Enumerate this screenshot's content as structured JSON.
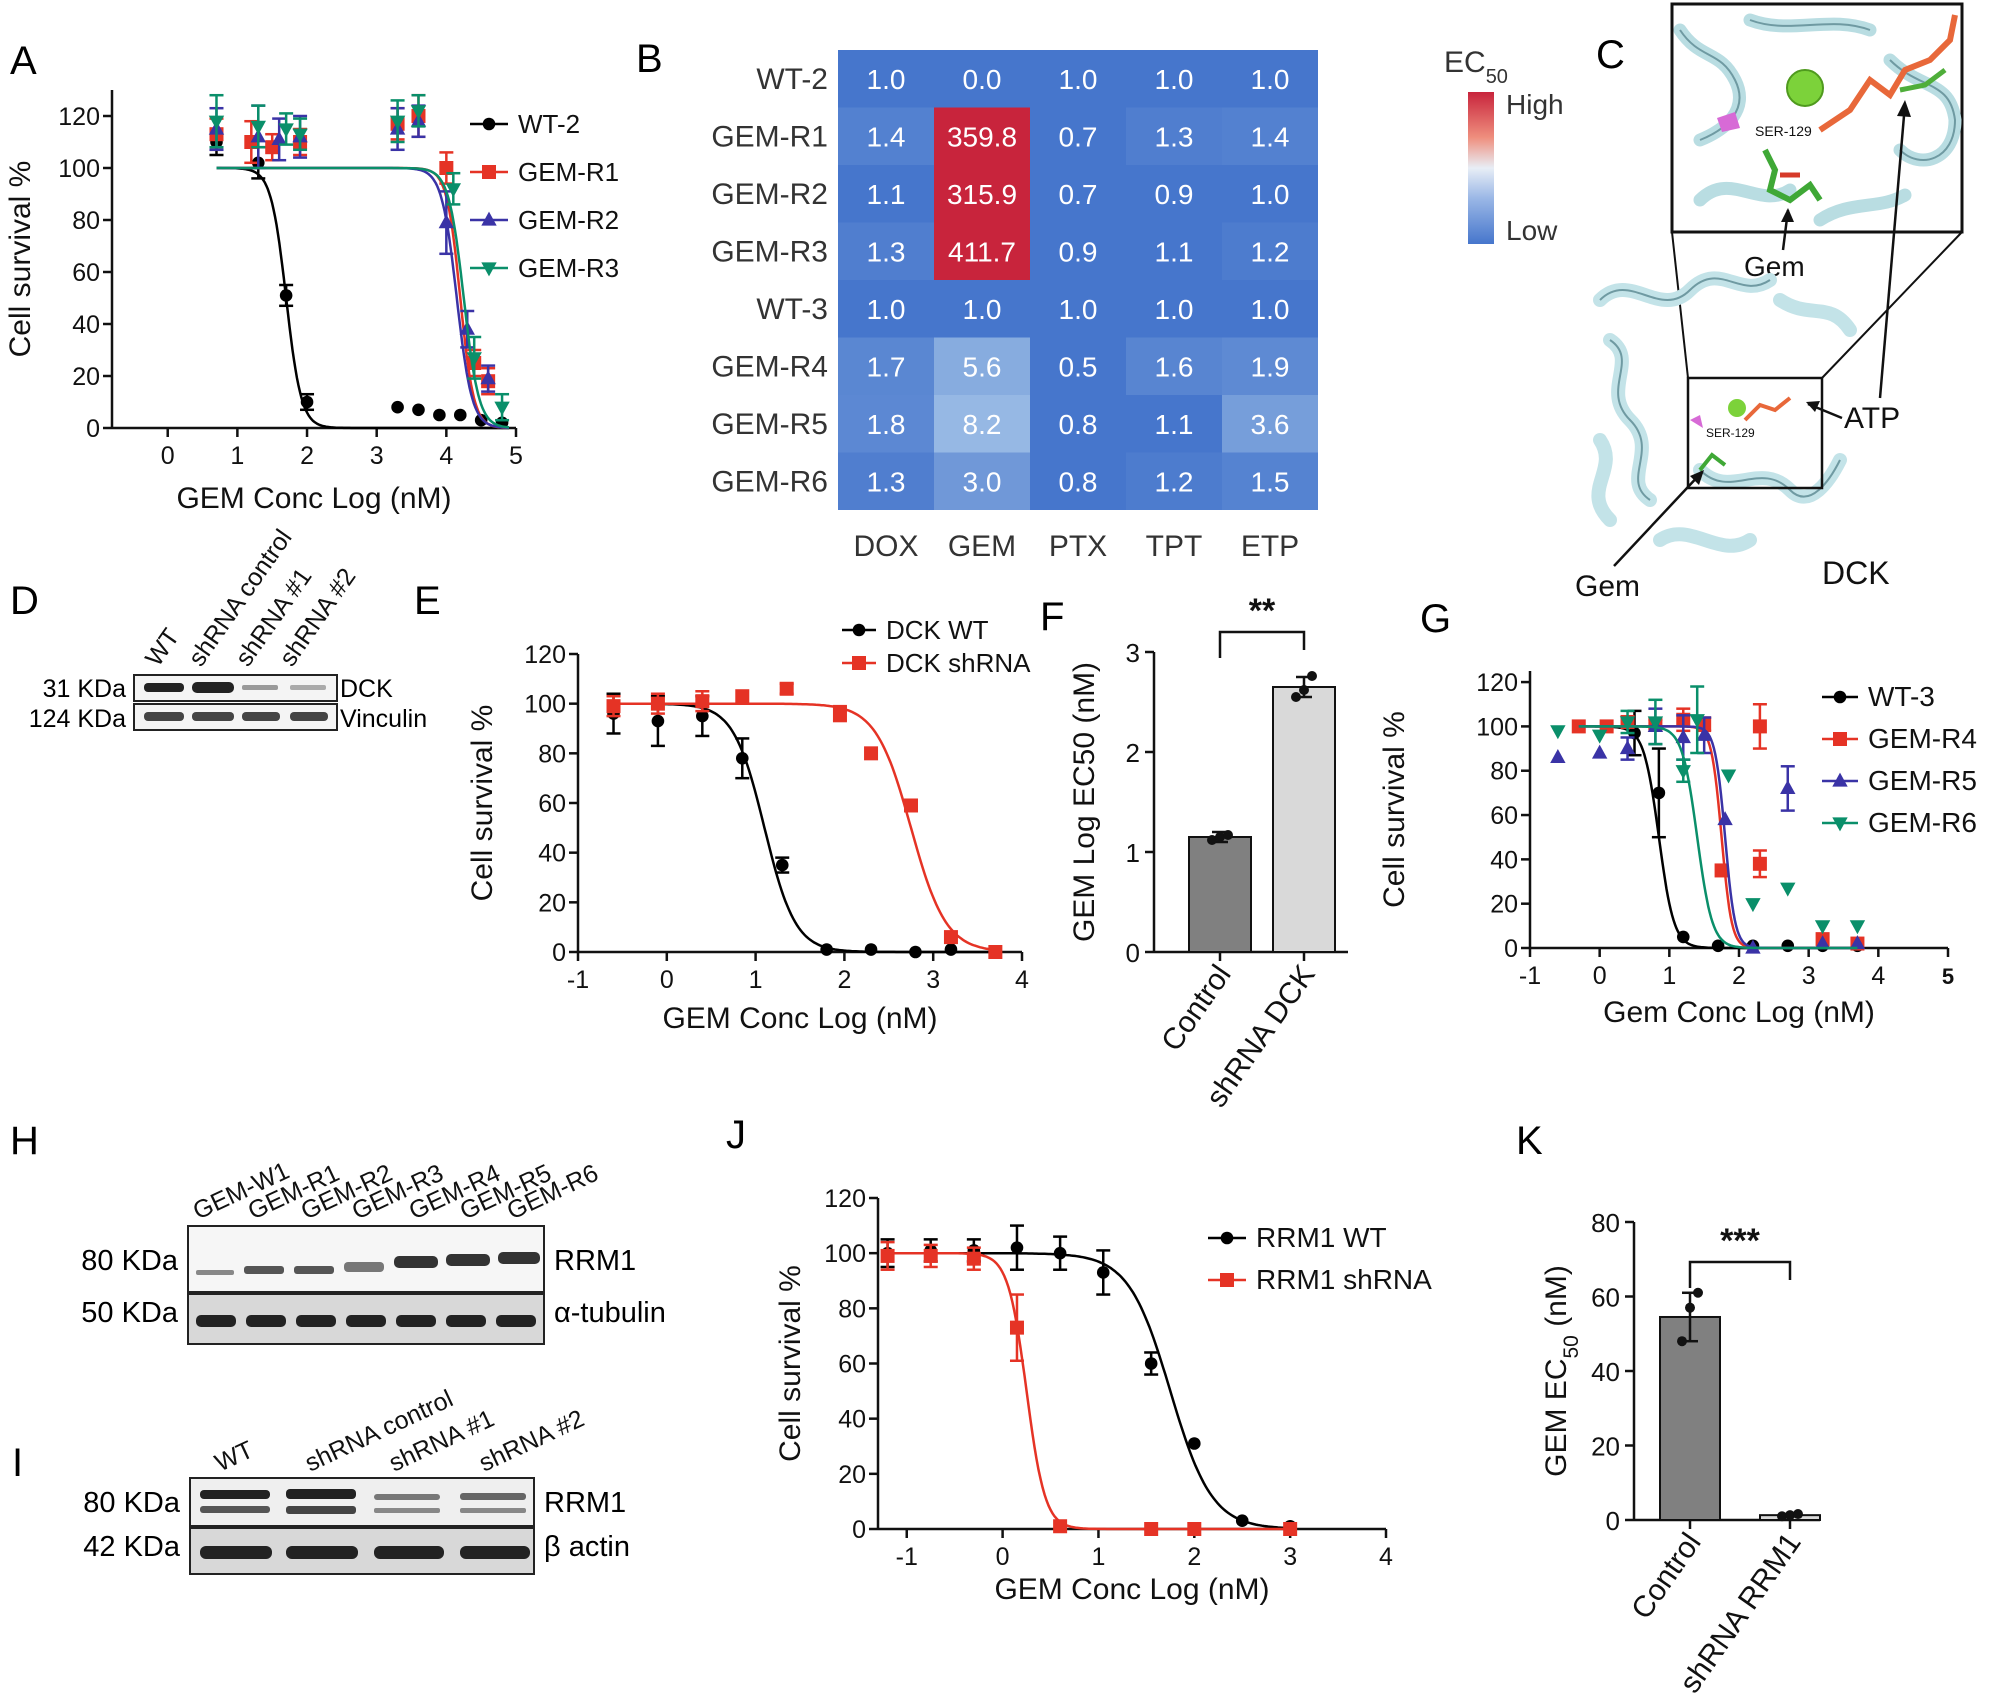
{
  "colors": {
    "black": "#000000",
    "red": "#e53325",
    "blue": "#3a33a6",
    "green": "#0a8f6a",
    "heat_low": "#4676cc",
    "heat_high": "#c8243c",
    "gray_bar": "#808080",
    "light_bar": "#d9d9d9"
  },
  "panel_letters": {
    "A": "A",
    "B": "B",
    "C": "C",
    "D": "D",
    "E": "E",
    "F": "F",
    "G": "G",
    "H": "H",
    "I": "I",
    "J": "J",
    "K": "K"
  },
  "chart_data": [
    {
      "id": "A",
      "type": "line",
      "title": "",
      "xlabel": "GEM Conc Log (nM)",
      "ylabel": "Cell survival %",
      "xlim": [
        -0.8,
        5
      ],
      "ylim": [
        0,
        130
      ],
      "x_ticks": [
        "0",
        "1",
        "2",
        "3",
        "4",
        "5"
      ],
      "y_ticks": [
        "0",
        "20",
        "40",
        "60",
        "80",
        "100",
        "120"
      ],
      "series": [
        {
          "name": "WT-2",
          "color": "#000000",
          "marker": "circle",
          "logec50": 1.7,
          "hill": 4,
          "points": [
            [
              0.7,
              110
            ],
            [
              1.3,
              102
            ],
            [
              1.7,
              51
            ],
            [
              2.0,
              10
            ],
            [
              3.3,
              8
            ],
            [
              3.6,
              7
            ],
            [
              3.9,
              5
            ],
            [
              4.2,
              5
            ],
            [
              4.5,
              3
            ],
            [
              4.8,
              2
            ]
          ],
          "err": [
            5,
            6,
            4,
            3,
            0,
            0,
            0,
            0,
            0,
            0
          ]
        },
        {
          "name": "GEM-R1",
          "color": "#e53325",
          "marker": "square",
          "logec50": 4.2,
          "hill": 4.5,
          "points": [
            [
              0.7,
              113
            ],
            [
              1.2,
              110
            ],
            [
              1.5,
              108
            ],
            [
              1.9,
              110
            ],
            [
              3.3,
              117
            ],
            [
              3.6,
              120
            ],
            [
              4.0,
              100
            ],
            [
              4.4,
              25
            ],
            [
              4.6,
              18
            ]
          ],
          "err": [
            6,
            8,
            5,
            5,
            6,
            8,
            6,
            5,
            5
          ]
        },
        {
          "name": "GEM-R2",
          "color": "#3a33a6",
          "marker": "triangle",
          "logec50": 4.15,
          "hill": 4,
          "points": [
            [
              0.7,
              115
            ],
            [
              1.3,
              112
            ],
            [
              1.6,
              111
            ],
            [
              1.9,
              112
            ],
            [
              3.3,
              115
            ],
            [
              3.6,
              118
            ],
            [
              4.0,
              79
            ],
            [
              4.3,
              38
            ],
            [
              4.6,
              19
            ]
          ],
          "err": [
            8,
            12,
            8,
            8,
            8,
            6,
            12,
            7,
            5
          ]
        },
        {
          "name": "GEM-R3",
          "color": "#0a8f6a",
          "marker": "triangle-down",
          "logec50": 4.25,
          "hill": 4,
          "points": [
            [
              0.7,
              118
            ],
            [
              1.3,
              116
            ],
            [
              1.7,
              115
            ],
            [
              1.9,
              113
            ],
            [
              3.3,
              118
            ],
            [
              3.6,
              122
            ],
            [
              4.1,
              92
            ],
            [
              4.4,
              27
            ],
            [
              4.8,
              8
            ]
          ],
          "err": [
            10,
            8,
            6,
            6,
            8,
            6,
            6,
            8,
            5
          ]
        }
      ]
    },
    {
      "id": "B",
      "type": "heatmap",
      "xlabel": "",
      "ylabel": "",
      "rows": [
        "WT-2",
        "GEM-R1",
        "GEM-R2",
        "GEM-R3",
        "WT-3",
        "GEM-R4",
        "GEM-R5",
        "GEM-R6"
      ],
      "cols": [
        "DOX",
        "GEM",
        "PTX",
        "TPT",
        "ETP"
      ],
      "values": [
        [
          "1.0",
          "0.0",
          "1.0",
          "1.0",
          "1.0"
        ],
        [
          "1.4",
          "359.8",
          "0.7",
          "1.3",
          "1.4"
        ],
        [
          "1.1",
          "315.9",
          "0.7",
          "0.9",
          "1.0"
        ],
        [
          "1.3",
          "411.7",
          "0.9",
          "1.1",
          "1.2"
        ],
        [
          "1.0",
          "1.0",
          "1.0",
          "1.0",
          "1.0"
        ],
        [
          "1.7",
          "5.6",
          "0.5",
          "1.6",
          "1.9"
        ],
        [
          "1.8",
          "8.2",
          "0.8",
          "1.1",
          "3.6"
        ],
        [
          "1.3",
          "3.0",
          "0.8",
          "1.2",
          "1.5"
        ]
      ],
      "colorbar": {
        "title": "EC",
        "title_sub": "50",
        "high": "High",
        "low": "Low"
      }
    },
    {
      "id": "E",
      "type": "line",
      "xlabel": "GEM Conc Log (nM)",
      "ylabel": "Cell survival %",
      "xlim": [
        -1,
        4
      ],
      "ylim": [
        0,
        120
      ],
      "x_ticks": [
        "-1",
        "0",
        "1",
        "2",
        "3",
        "4"
      ],
      "y_ticks": [
        "0",
        "20",
        "40",
        "60",
        "80",
        "100",
        "120"
      ],
      "series": [
        {
          "name": "DCK WT",
          "color": "#000000",
          "marker": "circle",
          "logec50": 1.1,
          "hill": 2.5,
          "points": [
            [
              -0.6,
              96
            ],
            [
              -0.1,
              93
            ],
            [
              0.4,
              95
            ],
            [
              0.85,
              78
            ],
            [
              1.3,
              35
            ],
            [
              1.8,
              1
            ],
            [
              2.3,
              1
            ],
            [
              2.8,
              0
            ],
            [
              3.2,
              1
            ]
          ],
          "err": [
            8,
            10,
            8,
            8,
            3,
            0,
            0,
            0,
            0
          ]
        },
        {
          "name": "DCK shRNA",
          "color": "#e53325",
          "marker": "square",
          "logec50": 2.75,
          "hill": 2.2,
          "points": [
            [
              -0.6,
              99
            ],
            [
              -0.1,
              100
            ],
            [
              0.4,
              101
            ],
            [
              0.85,
              103
            ],
            [
              1.35,
              106
            ],
            [
              1.95,
              96
            ],
            [
              2.3,
              80
            ],
            [
              2.75,
              59
            ],
            [
              3.2,
              6
            ],
            [
              3.7,
              0
            ]
          ],
          "err": [
            4,
            4,
            4,
            0,
            2,
            3,
            0,
            0,
            0,
            0
          ]
        }
      ]
    },
    {
      "id": "F",
      "type": "bar",
      "ylabel": "GEM Log EC50 (nM)",
      "ylim": [
        0,
        3
      ],
      "categories": [
        "Control",
        "shRNA DCK"
      ],
      "values": [
        1.15,
        2.65
      ],
      "errors": [
        0.05,
        0.1
      ],
      "points": [
        [
          1.12,
          1.15,
          1.17
        ],
        [
          2.55,
          2.62,
          2.76
        ]
      ],
      "y_ticks": [
        "0",
        "1",
        "2",
        "3"
      ],
      "significance": "**"
    },
    {
      "id": "G",
      "type": "line",
      "xlabel": "Gem Conc Log (nM)",
      "ylabel": "Cell survival %",
      "xlim": [
        -1,
        5
      ],
      "ylim": [
        0,
        125
      ],
      "x_ticks": [
        "-1",
        "0",
        "1",
        "2",
        "3",
        "4",
        "5"
      ],
      "y_ticks": [
        "0",
        "20",
        "40",
        "60",
        "80",
        "100",
        "120"
      ],
      "series": [
        {
          "name": "WT-3",
          "color": "#000000",
          "marker": "circle",
          "logec50": 0.85,
          "hill": 4,
          "points": [
            [
              -0.3,
              100
            ],
            [
              0.1,
              100
            ],
            [
              0.5,
              97
            ],
            [
              0.85,
              70
            ],
            [
              1.2,
              5
            ],
            [
              1.7,
              1
            ],
            [
              2.2,
              1
            ],
            [
              2.7,
              1
            ],
            [
              3.2,
              1
            ],
            [
              3.7,
              1
            ]
          ],
          "err": [
            0,
            0,
            10,
            20,
            0,
            0,
            0,
            0,
            0,
            0
          ]
        },
        {
          "name": "GEM-R4",
          "color": "#e53325",
          "marker": "square",
          "logec50": 1.75,
          "hill": 6,
          "points": [
            [
              -0.3,
              100
            ],
            [
              0.1,
              100
            ],
            [
              0.4,
              102
            ],
            [
              0.8,
              101
            ],
            [
              1.2,
              103
            ],
            [
              1.5,
              101
            ],
            [
              1.75,
              35
            ],
            [
              2.3,
              100
            ],
            [
              2.3,
              38
            ],
            [
              3.2,
              4
            ],
            [
              3.7,
              2
            ]
          ],
          "err": [
            0,
            0,
            2,
            2,
            5,
            3,
            0,
            10,
            6,
            0,
            0
          ]
        },
        {
          "name": "GEM-R5",
          "color": "#3a33a6",
          "marker": "triangle",
          "logec50": 1.8,
          "hill": 6,
          "points": [
            [
              -0.6,
              86
            ],
            [
              0.0,
              88
            ],
            [
              0.4,
              90
            ],
            [
              0.8,
              100
            ],
            [
              1.2,
              95
            ],
            [
              1.5,
              96
            ],
            [
              1.8,
              58
            ],
            [
              2.2,
              0
            ],
            [
              2.7,
              72
            ],
            [
              3.2,
              2
            ],
            [
              3.7,
              2
            ]
          ],
          "err": [
            0,
            0,
            5,
            8,
            10,
            8,
            0,
            0,
            10,
            0,
            0
          ]
        },
        {
          "name": "GEM-R6",
          "color": "#0a8f6a",
          "marker": "triangle-down",
          "logec50": 1.4,
          "hill": 4,
          "points": [
            [
              -0.6,
              98
            ],
            [
              0.0,
              96
            ],
            [
              0.4,
              102
            ],
            [
              0.8,
              102
            ],
            [
              1.2,
              80
            ],
            [
              1.4,
              103
            ],
            [
              1.85,
              78
            ],
            [
              2.2,
              20
            ],
            [
              2.7,
              27
            ],
            [
              3.2,
              10
            ],
            [
              3.7,
              10
            ]
          ],
          "err": [
            0,
            0,
            5,
            10,
            5,
            15,
            0,
            0,
            0,
            0,
            0
          ]
        }
      ]
    },
    {
      "id": "J",
      "type": "line",
      "xlabel": "GEM Conc Log (nM)",
      "ylabel": "Cell survival %",
      "xlim": [
        -1.3,
        4
      ],
      "ylim": [
        0,
        120
      ],
      "x_ticks": [
        "-1",
        "0",
        "1",
        "2",
        "3",
        "4"
      ],
      "y_ticks": [
        "0",
        "20",
        "40",
        "60",
        "80",
        "100",
        "120"
      ],
      "series": [
        {
          "name": "RRM1 WT",
          "color": "#000000",
          "marker": "circle",
          "logec50": 1.75,
          "hill": 2,
          "points": [
            [
              -1.2,
              100
            ],
            [
              -0.75,
              101
            ],
            [
              -0.3,
              101
            ],
            [
              0.15,
              102
            ],
            [
              0.6,
              100
            ],
            [
              1.05,
              93
            ],
            [
              1.55,
              60
            ],
            [
              2.0,
              31
            ],
            [
              2.5,
              3
            ],
            [
              3.0,
              1
            ]
          ],
          "err": [
            5,
            4,
            4,
            8,
            6,
            8,
            4,
            0,
            0,
            0
          ]
        },
        {
          "name": "RRM1 shRNA",
          "color": "#e53325",
          "marker": "square",
          "logec50": 0.25,
          "hill": 4.5,
          "points": [
            [
              -1.2,
              99
            ],
            [
              -0.75,
              99
            ],
            [
              -0.3,
              98
            ],
            [
              0.15,
              73
            ],
            [
              0.6,
              1
            ],
            [
              1.55,
              0
            ],
            [
              2.0,
              0
            ],
            [
              3.0,
              0
            ]
          ],
          "err": [
            5,
            4,
            4,
            12,
            0,
            0,
            0,
            0
          ]
        }
      ]
    },
    {
      "id": "K",
      "type": "bar",
      "ylabel": "GEM EC50 (nM)",
      "ylabel_main": "GEM EC",
      "ylabel_sub": "50",
      "ylabel_end": " (nM)",
      "ylim": [
        0,
        80
      ],
      "categories": [
        "Control",
        "shRNA RRM1"
      ],
      "values": [
        54.5,
        1.3
      ],
      "errors": [
        6.5,
        0.3
      ],
      "points": [
        [
          48,
          57,
          61
        ],
        [
          1.0,
          1.3,
          1.6
        ]
      ],
      "y_ticks": [
        "0",
        "20",
        "40",
        "60",
        "80"
      ],
      "significance": "***"
    }
  ],
  "panel_C": {
    "labels": [
      "SER-129",
      "Gem",
      "ATP",
      "SER-129",
      "Gem",
      "DCK"
    ]
  },
  "panel_D": {
    "lanes": [
      "WT",
      "shRNA control",
      "shRNA #1",
      "shRNA #2"
    ],
    "rows": [
      {
        "mw": "31 KDa",
        "protein": "DCK"
      },
      {
        "mw": "124 KDa",
        "protein": "Vinculin"
      }
    ]
  },
  "panel_H": {
    "lanes": [
      "GEM-W1",
      "GEM-R1",
      "GEM-R2",
      "GEM-R3",
      "GEM-R4",
      "GEM-R5",
      "GEM-R6"
    ],
    "rows": [
      {
        "mw": "80 KDa",
        "protein": "RRM1"
      },
      {
        "mw": "50 KDa",
        "protein": "α-tubulin"
      }
    ]
  },
  "panel_I": {
    "lanes": [
      "WT",
      "shRNA control",
      "shRNA #1",
      "shRNA #2"
    ],
    "rows": [
      {
        "mw": "80 KDa",
        "protein": "RRM1"
      },
      {
        "mw": "42 KDa",
        "protein": "β actin"
      }
    ]
  }
}
